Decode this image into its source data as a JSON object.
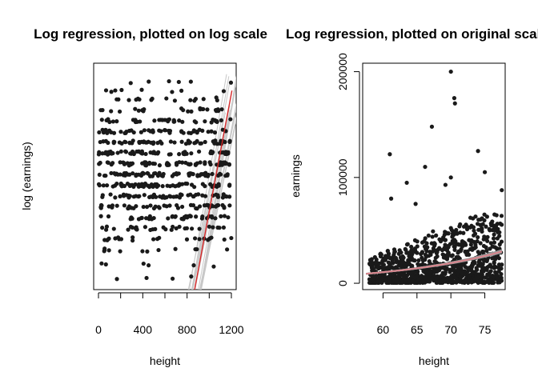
{
  "chart_data": [
    {
      "type": "scatter",
      "title": "Log regression, plotted on log scale",
      "xlabel": "height",
      "ylabel": "log (earnings)",
      "xlim": [
        -45,
        1245
      ],
      "xticks": [
        0,
        400,
        800,
        1200
      ],
      "x_tick_labels": [
        "0",
        "400",
        "800",
        "1200"
      ],
      "y_tick_labels": [],
      "ylim": [
        0,
        100
      ],
      "grid": false,
      "points_note_levels": [
        93,
        86,
        82,
        78,
        73,
        68,
        63,
        58,
        53,
        48,
        44,
        39,
        34,
        29,
        24,
        19,
        15,
        4
      ],
      "series": [
        {
          "label_style": "scatter",
          "color": "#1a1a1a",
          "bands": [
            {
              "y": 95,
              "count": 6
            },
            {
              "y": 91,
              "count": 8
            },
            {
              "y": 87,
              "count": 16
            },
            {
              "y": 82,
              "count": 24
            },
            {
              "y": 77,
              "count": 36
            },
            {
              "y": 72,
              "count": 46
            },
            {
              "y": 67,
              "count": 55
            },
            {
              "y": 62,
              "count": 62
            },
            {
              "y": 57,
              "count": 64
            },
            {
              "y": 52,
              "count": 64
            },
            {
              "y": 47,
              "count": 62
            },
            {
              "y": 42,
              "count": 55
            },
            {
              "y": 37,
              "count": 48
            },
            {
              "y": 32,
              "count": 40
            },
            {
              "y": 27,
              "count": 32
            },
            {
              "y": 22,
              "count": 22
            },
            {
              "y": 17,
              "count": 12
            },
            {
              "y": 10,
              "count": 6
            },
            {
              "y": 4,
              "count": 4
            }
          ]
        }
      ],
      "fit_line": {
        "color": "#d62728",
        "x": [
          868,
          1205
        ],
        "y": [
          -2,
          91
        ]
      },
      "simulated_lines": {
        "color": "#c8c8c8",
        "count": 20
      }
    },
    {
      "type": "scatter",
      "title": "Log regression, plotted on original scale",
      "xlabel": "height",
      "ylabel": "earnings",
      "xlim": [
        57,
        78
      ],
      "ylim": [
        -6000,
        208000
      ],
      "xticks": [
        60,
        65,
        70,
        75
      ],
      "yticks": [
        0,
        100000,
        200000
      ],
      "x_tick_labels": [
        "60",
        "65",
        "70",
        "75"
      ],
      "y_tick_labels": [
        "0",
        "100000",
        "200000"
      ],
      "grid": false,
      "outliers": [
        {
          "x": 70.0,
          "y": 200000
        },
        {
          "x": 70.5,
          "y": 175000
        },
        {
          "x": 70.6,
          "y": 170000
        },
        {
          "x": 67.2,
          "y": 148000
        },
        {
          "x": 74.0,
          "y": 125000
        },
        {
          "x": 61.0,
          "y": 122000
        },
        {
          "x": 66.2,
          "y": 110000
        },
        {
          "x": 75.0,
          "y": 105000
        },
        {
          "x": 70.0,
          "y": 100000
        },
        {
          "x": 63.5,
          "y": 95000
        },
        {
          "x": 69.2,
          "y": 93000
        },
        {
          "x": 77.5,
          "y": 88000
        },
        {
          "x": 61.2,
          "y": 80000
        },
        {
          "x": 64.8,
          "y": 75000
        }
      ],
      "fit_curve": {
        "color": "#d9848c",
        "x": [
          57.5,
          77.5
        ],
        "y": [
          9000,
          30000
        ]
      },
      "simulated_curves": {
        "color": "#9a9a9a",
        "count": 20
      }
    }
  ]
}
